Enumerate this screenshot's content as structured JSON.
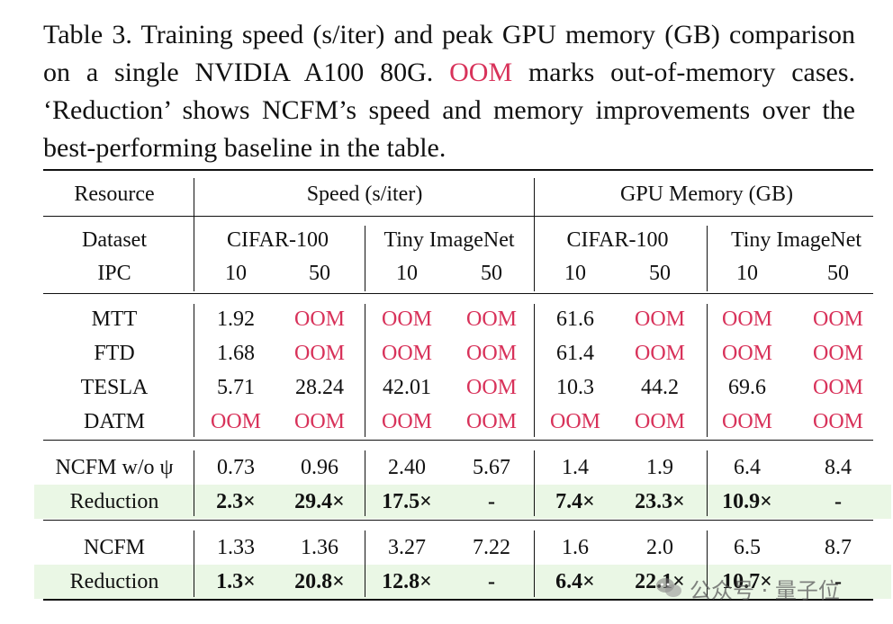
{
  "caption": {
    "before": "Table 3.  Training speed (s/iter) and peak GPU memory (GB) comparison on a single NVIDIA A100 80G. ",
    "oom_word": "OOM",
    "after": " marks out-of-memory cases.  ‘Reduction’ shows NCFM’s speed and memory improvements over the best-performing baseline in the table."
  },
  "header": {
    "resource": "Resource",
    "speed": "Speed (s/iter)",
    "memory": "GPU Memory (GB)",
    "dataset": "Dataset",
    "ipc": "IPC",
    "datasets": [
      "CIFAR-100",
      "Tiny ImageNet",
      "CIFAR-100",
      "Tiny ImageNet"
    ],
    "ipcs": [
      "10",
      "50",
      "10",
      "50",
      "10",
      "50",
      "10",
      "50"
    ]
  },
  "rows": [
    {
      "label": "MTT",
      "values": [
        "1.92",
        "OOM",
        "OOM",
        "OOM",
        "61.6",
        "OOM",
        "OOM",
        "OOM"
      ]
    },
    {
      "label": "FTD",
      "values": [
        "1.68",
        "OOM",
        "OOM",
        "OOM",
        "61.4",
        "OOM",
        "OOM",
        "OOM"
      ]
    },
    {
      "label": "TESLA",
      "values": [
        "5.71",
        "28.24",
        "42.01",
        "OOM",
        "10.3",
        "44.2",
        "69.6",
        "OOM"
      ]
    },
    {
      "label": "DATM",
      "values": [
        "OOM",
        "OOM",
        "OOM",
        "OOM",
        "OOM",
        "OOM",
        "OOM",
        "OOM"
      ]
    },
    {
      "label": "NCFM w/o ψ",
      "values": [
        "0.73",
        "0.96",
        "2.40",
        "5.67",
        "1.4",
        "1.9",
        "6.4",
        "8.4"
      ]
    },
    {
      "label": "Reduction",
      "values": [
        "2.3×",
        "29.4×",
        "17.5×",
        "-",
        "7.4×",
        "23.3×",
        "10.9×",
        "-"
      ]
    },
    {
      "label": "NCFM",
      "values": [
        "1.33",
        "1.36",
        "3.27",
        "7.22",
        "1.6",
        "2.0",
        "6.5",
        "8.7"
      ]
    },
    {
      "label": "Reduction",
      "values": [
        "1.3×",
        "20.8×",
        "12.8×",
        "-",
        "6.4×",
        "22.1×",
        "10.7×",
        "-"
      ]
    }
  ],
  "watermark": {
    "text": "公众号 · 量子位",
    "icon": "wechat-icon"
  }
}
